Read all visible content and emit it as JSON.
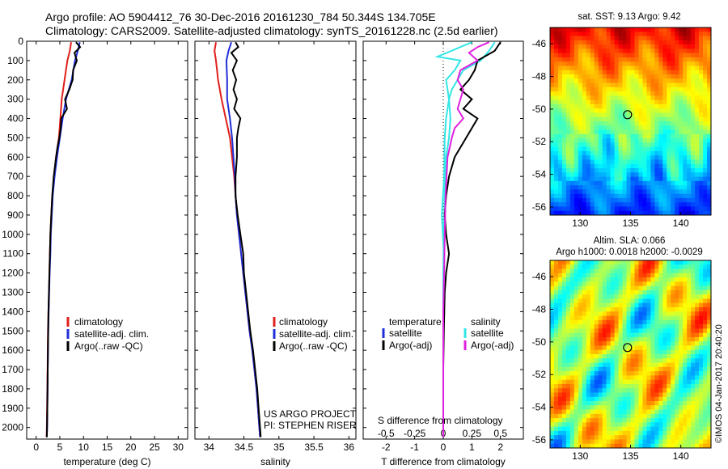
{
  "header": {
    "line1": "Argo profile: AO 5904412_76 30-Dec-2016 20161230_784 50.344S 134.705E",
    "line2": "Climatology: CARS2009. Satellite-adjusted climatology: synTS_20161228.nc (2.5d earlier)"
  },
  "colors": {
    "climatology": "#e0201b",
    "satellite": "#1f2fd8",
    "argo": "#000000",
    "satellite_s": "#33e6e6",
    "argo_s": "#e020e0"
  },
  "chart_data": [
    {
      "type": "line",
      "name": "temperature-panel",
      "xlabel": "temperature (deg C)",
      "ylabel": "",
      "xlim": [
        -2,
        32
      ],
      "ylim": [
        2060,
        0
      ],
      "xticks": [
        "0",
        "5",
        "10",
        "15",
        "20",
        "25",
        "30"
      ],
      "yticks": [
        "0",
        "100",
        "200",
        "300",
        "400",
        "500",
        "600",
        "700",
        "800",
        "900",
        "1000",
        "1100",
        "1200",
        "1300",
        "1400",
        "1500",
        "1600",
        "1700",
        "1800",
        "1900",
        "2000"
      ],
      "legend": [
        "climatology",
        "satellite-adj. clim.",
        "Argo(..raw -QC)"
      ],
      "series": [
        {
          "name": "climatology",
          "points": [
            [
              7.4,
              5
            ],
            [
              7.1,
              50
            ],
            [
              6.6,
              100
            ],
            [
              6.0,
              200
            ],
            [
              5.4,
              300
            ],
            [
              5.1,
              400
            ],
            [
              4.8,
              500
            ],
            [
              4.2,
              600
            ],
            [
              3.8,
              700
            ],
            [
              3.4,
              800
            ],
            [
              3.2,
              900
            ],
            [
              3.0,
              1000
            ],
            [
              2.9,
              1100
            ],
            [
              2.8,
              1200
            ],
            [
              2.7,
              1300
            ],
            [
              2.6,
              1400
            ],
            [
              2.5,
              1500
            ],
            [
              2.45,
              1600
            ],
            [
              2.4,
              1700
            ],
            [
              2.35,
              1800
            ],
            [
              2.3,
              1900
            ],
            [
              2.25,
              2000
            ],
            [
              2.2,
              2050
            ]
          ]
        },
        {
          "name": "satellite-adj. clim.",
          "points": [
            [
              9.2,
              5
            ],
            [
              8.8,
              50
            ],
            [
              8.2,
              100
            ],
            [
              7.5,
              200
            ],
            [
              6.3,
              300
            ],
            [
              5.6,
              400
            ],
            [
              5.0,
              500
            ],
            [
              4.4,
              600
            ],
            [
              3.9,
              700
            ],
            [
              3.5,
              800
            ],
            [
              3.3,
              900
            ],
            [
              3.1,
              1000
            ],
            [
              3.0,
              1100
            ],
            [
              2.85,
              1200
            ],
            [
              2.75,
              1300
            ],
            [
              2.65,
              1400
            ],
            [
              2.55,
              1500
            ],
            [
              2.5,
              1600
            ],
            [
              2.45,
              1700
            ],
            [
              2.4,
              1800
            ],
            [
              2.35,
              1900
            ],
            [
              2.3,
              2000
            ],
            [
              2.25,
              2050
            ]
          ]
        },
        {
          "name": "Argo(..raw -QC)",
          "points": [
            [
              8.4,
              5
            ],
            [
              9.3,
              30
            ],
            [
              8.1,
              60
            ],
            [
              8.6,
              100
            ],
            [
              7.8,
              150
            ],
            [
              7.7,
              200
            ],
            [
              7.0,
              250
            ],
            [
              6.1,
              300
            ],
            [
              6.5,
              350
            ],
            [
              5.3,
              400
            ],
            [
              5.2,
              450
            ],
            [
              4.9,
              500
            ],
            [
              4.5,
              550
            ],
            [
              4.2,
              600
            ],
            [
              3.7,
              700
            ],
            [
              3.4,
              800
            ],
            [
              3.2,
              900
            ],
            [
              3.0,
              1000
            ],
            [
              2.9,
              1100
            ],
            [
              2.8,
              1200
            ],
            [
              2.7,
              1300
            ],
            [
              2.6,
              1400
            ],
            [
              2.55,
              1500
            ],
            [
              2.5,
              1600
            ],
            [
              2.45,
              1700
            ],
            [
              2.4,
              1800
            ],
            [
              2.35,
              1900
            ],
            [
              2.3,
              2000
            ],
            [
              2.25,
              2050
            ]
          ]
        }
      ]
    },
    {
      "type": "line",
      "name": "salinity-panel",
      "xlabel": "salinity",
      "ylabel": "",
      "xlim": [
        33.8,
        36.1
      ],
      "ylim": [
        2060,
        0
      ],
      "xticks": [
        "34",
        "34.5",
        "35",
        "35.5",
        "36"
      ],
      "legend": [
        "climatology",
        "satellite-adj. clim.",
        "Argo(..raw -QC)"
      ],
      "note1": "US ARGO PROJECT",
      "note2": "PI: STEPHEN RISER",
      "series": [
        {
          "name": "climatology",
          "points": [
            [
              34.1,
              5
            ],
            [
              34.08,
              50
            ],
            [
              34.1,
              100
            ],
            [
              34.13,
              200
            ],
            [
              34.18,
              300
            ],
            [
              34.24,
              400
            ],
            [
              34.3,
              500
            ],
            [
              34.33,
              600
            ],
            [
              34.36,
              700
            ],
            [
              34.38,
              800
            ],
            [
              34.4,
              900
            ],
            [
              34.43,
              1000
            ],
            [
              34.46,
              1100
            ],
            [
              34.49,
              1200
            ],
            [
              34.52,
              1300
            ],
            [
              34.55,
              1400
            ],
            [
              34.58,
              1500
            ],
            [
              34.62,
              1600
            ],
            [
              34.65,
              1700
            ],
            [
              34.68,
              1800
            ],
            [
              34.7,
              1900
            ],
            [
              34.72,
              2000
            ],
            [
              34.73,
              2050
            ]
          ]
        },
        {
          "name": "satellite-adj. clim.",
          "points": [
            [
              34.32,
              5
            ],
            [
              34.28,
              50
            ],
            [
              34.25,
              100
            ],
            [
              34.26,
              200
            ],
            [
              34.26,
              300
            ],
            [
              34.3,
              400
            ],
            [
              34.33,
              500
            ],
            [
              34.35,
              600
            ],
            [
              34.37,
              700
            ],
            [
              34.38,
              800
            ],
            [
              34.4,
              900
            ],
            [
              34.43,
              1000
            ],
            [
              34.46,
              1100
            ],
            [
              34.49,
              1200
            ],
            [
              34.52,
              1300
            ],
            [
              34.55,
              1400
            ],
            [
              34.58,
              1500
            ],
            [
              34.62,
              1600
            ],
            [
              34.65,
              1700
            ],
            [
              34.68,
              1800
            ],
            [
              34.7,
              1900
            ],
            [
              34.72,
              2000
            ],
            [
              34.73,
              2050
            ]
          ]
        },
        {
          "name": "Argo(..raw -QC)",
          "points": [
            [
              34.38,
              5
            ],
            [
              34.42,
              30
            ],
            [
              34.32,
              60
            ],
            [
              34.4,
              100
            ],
            [
              34.34,
              150
            ],
            [
              34.39,
              200
            ],
            [
              34.35,
              250
            ],
            [
              34.4,
              300
            ],
            [
              34.36,
              350
            ],
            [
              34.45,
              400
            ],
            [
              34.42,
              450
            ],
            [
              34.4,
              500
            ],
            [
              34.4,
              600
            ],
            [
              34.38,
              700
            ],
            [
              34.38,
              800
            ],
            [
              34.41,
              900
            ],
            [
              34.45,
              1000
            ],
            [
              34.49,
              1100
            ],
            [
              34.5,
              1200
            ],
            [
              34.53,
              1300
            ],
            [
              34.56,
              1400
            ],
            [
              34.59,
              1500
            ],
            [
              34.63,
              1600
            ],
            [
              34.66,
              1700
            ],
            [
              34.69,
              1800
            ],
            [
              34.71,
              1900
            ],
            [
              34.73,
              2000
            ],
            [
              34.74,
              2050
            ]
          ]
        }
      ]
    },
    {
      "type": "line",
      "name": "difference-panel",
      "xlabel": "T difference from climatology",
      "toplabel": "S difference from climatology",
      "xlim": [
        -2.8,
        2.8
      ],
      "ylim": [
        2060,
        0
      ],
      "xticks": [
        "-2",
        "-1",
        "0",
        "1",
        "2"
      ],
      "sticks": [
        "-0.5",
        "-0.25",
        "0",
        "0.25",
        "0.5"
      ],
      "legend_t_title": "temperature",
      "legend_s_title": "salinity",
      "legend": [
        "satellite",
        "Argo(-adj)",
        "satellite",
        "Argo(-adj)"
      ],
      "series": [
        {
          "name": "T satellite",
          "points": [
            [
              1.8,
              5
            ],
            [
              1.6,
              50
            ],
            [
              1.3,
              100
            ],
            [
              0.7,
              150
            ],
            [
              0.5,
              200
            ],
            [
              0.3,
              250
            ],
            [
              0.2,
              300
            ],
            [
              0.25,
              400
            ],
            [
              0.2,
              500
            ],
            [
              0.1,
              600
            ],
            [
              0.05,
              800
            ],
            [
              0.02,
              1000
            ],
            [
              0,
              1200
            ],
            [
              0,
              1600
            ],
            [
              0,
              1900
            ],
            [
              0,
              2050
            ]
          ]
        },
        {
          "name": "T Argo(-adj)",
          "points": [
            [
              2.0,
              5
            ],
            [
              1.8,
              50
            ],
            [
              1.2,
              100
            ],
            [
              1.1,
              150
            ],
            [
              0.9,
              200
            ],
            [
              0.6,
              250
            ],
            [
              1.0,
              300
            ],
            [
              0.7,
              350
            ],
            [
              1.2,
              400
            ],
            [
              0.8,
              500
            ],
            [
              0.4,
              600
            ],
            [
              0.2,
              700
            ],
            [
              0.1,
              800
            ],
            [
              0.05,
              900
            ],
            [
              0.1,
              1000
            ],
            [
              0.2,
              1100
            ],
            [
              0.1,
              1200
            ],
            [
              0.05,
              1300
            ],
            [
              0.02,
              1500
            ],
            [
              0,
              1700
            ],
            [
              0,
              2050
            ]
          ]
        },
        {
          "name": "S satellite",
          "points": [
            [
              1.0,
              5
            ],
            [
              -0.2,
              80
            ],
            [
              0.6,
              100
            ],
            [
              0.4,
              150
            ],
            [
              0.1,
              200
            ],
            [
              0.2,
              300
            ],
            [
              0.1,
              400
            ],
            [
              0.05,
              500
            ],
            [
              0.03,
              700
            ],
            [
              -0.05,
              900
            ],
            [
              0.02,
              1100
            ],
            [
              0,
              1300
            ],
            [
              0,
              1600
            ],
            [
              0,
              2050
            ]
          ]
        },
        {
          "name": "S Argo(-adj)",
          "points": [
            [
              1.6,
              5
            ],
            [
              1.2,
              30
            ],
            [
              0.9,
              60
            ],
            [
              1.2,
              100
            ],
            [
              0.6,
              150
            ],
            [
              0.5,
              200
            ],
            [
              0.7,
              250
            ],
            [
              0.6,
              300
            ],
            [
              0.5,
              350
            ],
            [
              0.7,
              400
            ],
            [
              0.4,
              450
            ],
            [
              0.3,
              500
            ],
            [
              0.15,
              600
            ],
            [
              0.08,
              800
            ],
            [
              0.05,
              1000
            ],
            [
              0.03,
              1200
            ],
            [
              0,
              1400
            ],
            [
              0,
              2050
            ]
          ]
        }
      ]
    }
  ],
  "sst_map": {
    "title": "sat. SST: 9.13 Argo: 9.42",
    "xticks": [
      "130",
      "135",
      "140"
    ],
    "yticks": [
      "-46",
      "-48",
      "-50",
      "-52",
      "-54",
      "-56"
    ],
    "xlim": [
      127,
      143
    ],
    "ylim": [
      -56.5,
      -45
    ]
  },
  "sla_map": {
    "title1": "Altim. SLA: 0.066",
    "title2": "Argo h1000: 0.0018 h2000: -0.0029",
    "xticks": [
      "130",
      "135",
      "140"
    ],
    "yticks": [
      "-46",
      "-48",
      "-50",
      "-52",
      "-54",
      "-56"
    ],
    "xlim": [
      127,
      143
    ],
    "ylim": [
      -56.5,
      -45
    ]
  },
  "stamp": "©IMOS 04-Jan-2017 20:40:20",
  "argo_position": {
    "lon": 134.705,
    "lat": -50.344
  }
}
